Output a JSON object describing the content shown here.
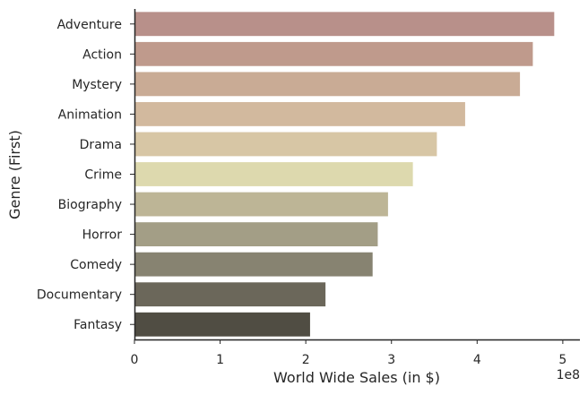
{
  "chart_data": {
    "type": "bar",
    "orientation": "horizontal",
    "xlabel": "World Wide Sales (in $)",
    "ylabel": "Genre (First)",
    "offset_label": "1e8",
    "xlim": [
      0,
      5.2
    ],
    "x_ticks": [
      0,
      1,
      2,
      3,
      4,
      5
    ],
    "x_tick_labels": [
      "0",
      "1",
      "2",
      "3",
      "4",
      "5"
    ],
    "grid": false,
    "categories": [
      "Adventure",
      "Action",
      "Mystery",
      "Animation",
      "Drama",
      "Crime",
      "Biography",
      "Horror",
      "Comedy",
      "Documentary",
      "Fantasy"
    ],
    "values": [
      4.9,
      4.65,
      4.5,
      3.86,
      3.53,
      3.25,
      2.96,
      2.84,
      2.78,
      2.23,
      2.05
    ],
    "colors": [
      "#b8908a",
      "#bf9a8c",
      "#c9ab95",
      "#d2b99e",
      "#d7c6a5",
      "#ddd9ae",
      "#bdb596",
      "#a39e86",
      "#878371",
      "#6b675a",
      "#504d43"
    ]
  }
}
